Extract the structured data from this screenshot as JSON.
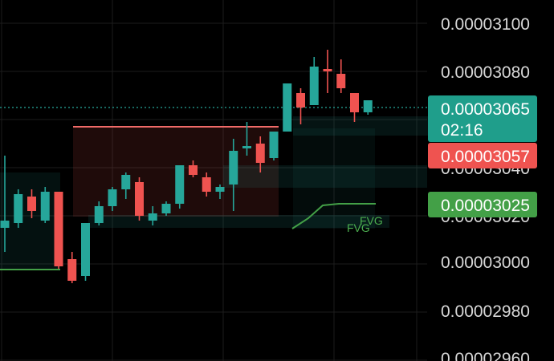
{
  "chart_data": {
    "type": "candlestick",
    "ylim": [
      2.96e-05,
      3.1e-05
    ],
    "y_ticks": [
      "0.00003100",
      "0.00003080",
      "0.00003040",
      "0.00003020",
      "0.00003000",
      "0.00002980",
      "0.00002960"
    ],
    "candles": [
      {
        "o": 3.015e-05,
        "h": 3.045e-05,
        "l": 3.005e-05,
        "c": 3.018e-05
      },
      {
        "o": 3.017e-05,
        "h": 3.031e-05,
        "l": 3.015e-05,
        "c": 3.029e-05
      },
      {
        "o": 3.028e-05,
        "h": 3.031e-05,
        "l": 3.019e-05,
        "c": 3.022e-05
      },
      {
        "o": 3.018e-05,
        "h": 3.032e-05,
        "l": 3.017e-05,
        "c": 3.03e-05
      },
      {
        "o": 3.03e-05,
        "h": 3.03e-05,
        "l": 2.998e-05,
        "c": 2.999e-05
      },
      {
        "o": 3.002e-05,
        "h": 3.005e-05,
        "l": 2.992e-05,
        "c": 2.993e-05
      },
      {
        "o": 2.995e-05,
        "h": 3.017e-05,
        "l": 2.993e-05,
        "c": 3.017e-05
      },
      {
        "o": 3.017e-05,
        "h": 3.026e-05,
        "l": 3.016e-05,
        "c": 3.024e-05
      },
      {
        "o": 3.024e-05,
        "h": 3.032e-05,
        "l": 3.022e-05,
        "c": 3.031e-05
      },
      {
        "o": 3.031e-05,
        "h": 3.038e-05,
        "l": 3.027e-05,
        "c": 3.037e-05
      },
      {
        "o": 3.034e-05,
        "h": 3.036e-05,
        "l": 3.018e-05,
        "c": 3.02e-05
      },
      {
        "o": 3.018e-05,
        "h": 3.024e-05,
        "l": 3.016e-05,
        "c": 3.021e-05
      },
      {
        "o": 3.021e-05,
        "h": 3.026e-05,
        "l": 3.02e-05,
        "c": 3.025e-05
      },
      {
        "o": 3.025e-05,
        "h": 3.041e-05,
        "l": 3.023e-05,
        "c": 3.041e-05
      },
      {
        "o": 3.041e-05,
        "h": 3.043e-05,
        "l": 3.036e-05,
        "c": 3.037e-05
      },
      {
        "o": 3.036e-05,
        "h": 3.038e-05,
        "l": 3.028e-05,
        "c": 3.03e-05
      },
      {
        "o": 3.03e-05,
        "h": 3.033e-05,
        "l": 3.027e-05,
        "c": 3.032e-05
      },
      {
        "o": 3.033e-05,
        "h": 3.052e-05,
        "l": 3.022e-05,
        "c": 3.047e-05
      },
      {
        "o": 3.048e-05,
        "h": 3.059e-05,
        "l": 3.045e-05,
        "c": 3.049e-05
      },
      {
        "o": 3.05e-05,
        "h": 3.053e-05,
        "l": 3.038e-05,
        "c": 3.042e-05
      },
      {
        "o": 3.044e-05,
        "h": 3.055e-05,
        "l": 3.043e-05,
        "c": 3.055e-05
      },
      {
        "o": 3.055e-05,
        "h": 3.075e-05,
        "l": 3.055e-05,
        "c": 3.075e-05
      },
      {
        "o": 3.071e-05,
        "h": 3.073e-05,
        "l": 3.058e-05,
        "c": 3.065e-05
      },
      {
        "o": 3.066e-05,
        "h": 3.086e-05,
        "l": 3.066e-05,
        "c": 3.082e-05
      },
      {
        "o": 3.081e-05,
        "h": 3.089e-05,
        "l": 3.071e-05,
        "c": 3.08e-05
      },
      {
        "o": 3.079e-05,
        "h": 3.085e-05,
        "l": 3.071e-05,
        "c": 3.073e-05
      },
      {
        "o": 3.071e-05,
        "h": 3.071e-05,
        "l": 3.059e-05,
        "c": 3.063e-05
      },
      {
        "o": 3.063e-05,
        "h": 3.068e-05,
        "l": 3.062e-05,
        "c": 3.068e-05
      }
    ],
    "price_lines": [
      {
        "value": 3.065e-05,
        "style": "dotted",
        "color": "#26a69a"
      }
    ],
    "badges": [
      {
        "price_text": "0.00003065",
        "sub_text": "02:16",
        "value": 3.065e-05,
        "color": "#1f9e8b"
      },
      {
        "price_text": "0.00003057",
        "value": 3.057e-05,
        "color": "#ef5350"
      },
      {
        "price_text": "0.00003025",
        "value": 3.025e-05,
        "color": "#43a047"
      }
    ],
    "annotations": [
      "FVG",
      "FVG"
    ],
    "colors": {
      "up": "#26a69a",
      "down": "#ef5350",
      "background": "#000000",
      "grid": "#1c1c1c",
      "fvg": "#4caf50"
    }
  }
}
